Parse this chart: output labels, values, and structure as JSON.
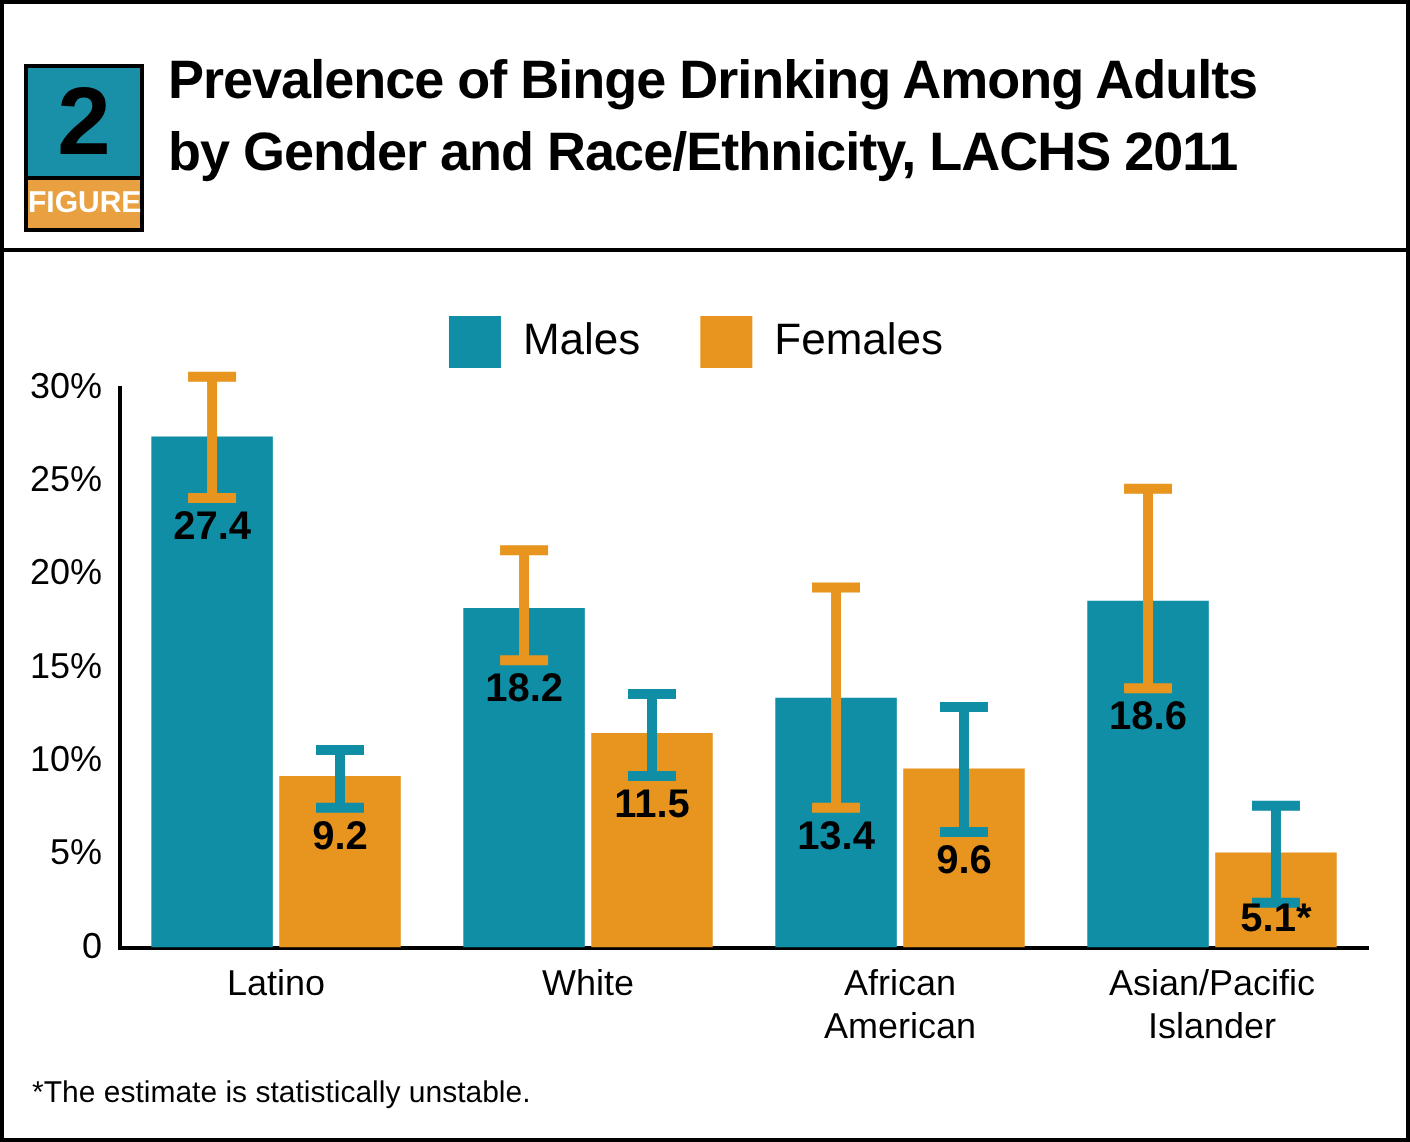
{
  "chart_data": {
    "type": "bar",
    "title": "Prevalence of Binge Drinking Among Adults by Gender and Race/Ethnicity, LACHS 2011",
    "categories": [
      "Latino",
      "White",
      "African American",
      "Asian/Pacific Islander"
    ],
    "series": [
      {
        "name": "Males",
        "color": "#0f8ea6",
        "values": [
          27.4,
          18.2,
          13.4,
          18.6
        ],
        "value_labels": [
          "27.4",
          "18.2",
          "13.4",
          "18.6"
        ],
        "errors": [
          [
            24.1,
            30.6
          ],
          [
            15.4,
            21.3
          ],
          [
            7.5,
            19.3
          ],
          [
            13.9,
            24.6
          ]
        ]
      },
      {
        "name": "Females",
        "color": "#e8951f",
        "values": [
          9.2,
          11.5,
          9.6,
          5.1
        ],
        "value_labels": [
          "9.2",
          "11.5",
          "9.6",
          "5.1*"
        ],
        "errors": [
          [
            7.5,
            10.6
          ],
          [
            9.2,
            13.6
          ],
          [
            6.2,
            12.9
          ],
          [
            2.4,
            7.6
          ]
        ]
      }
    ],
    "ylim": [
      0,
      30
    ],
    "yticks": [
      {
        "value": 0,
        "label": "0"
      },
      {
        "value": 5,
        "label": "5%"
      },
      {
        "value": 10,
        "label": "10%"
      },
      {
        "value": 15,
        "label": "15%"
      },
      {
        "value": 20,
        "label": "20%"
      },
      {
        "value": 25,
        "label": "25%"
      },
      {
        "value": 30,
        "label": "30%"
      }
    ],
    "grid": false,
    "legend": "top",
    "annotations": [
      "2",
      "FIGURE",
      "*The estimate is statistically unstable."
    ]
  }
}
